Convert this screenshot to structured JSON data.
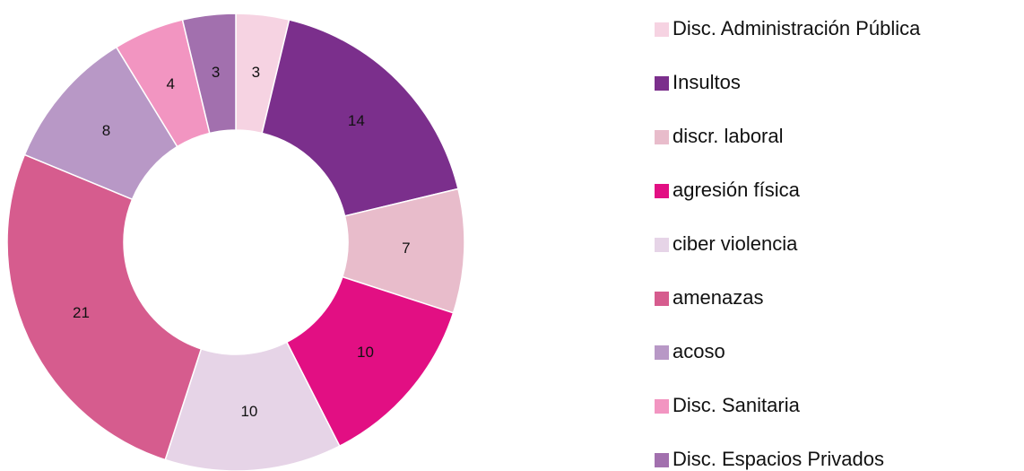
{
  "chart_data": {
    "type": "pie",
    "categories": [
      "Disc. Administración Pública",
      "Insultos",
      "discr. laboral",
      "agresión física",
      "ciber violencia",
      "amenazas",
      "acoso",
      "Disc. Sanitaria",
      "Disc. Espacios Privados"
    ],
    "values": [
      3,
      14,
      7,
      10,
      10,
      21,
      8,
      4,
      3
    ],
    "colors": [
      "#f6d3e2",
      "#7b2f8c",
      "#e8bccb",
      "#e20f83",
      "#e6d4e7",
      "#d65c8e",
      "#b898c6",
      "#f295c1",
      "#a270ae"
    ],
    "donut": true,
    "legend": "right"
  }
}
